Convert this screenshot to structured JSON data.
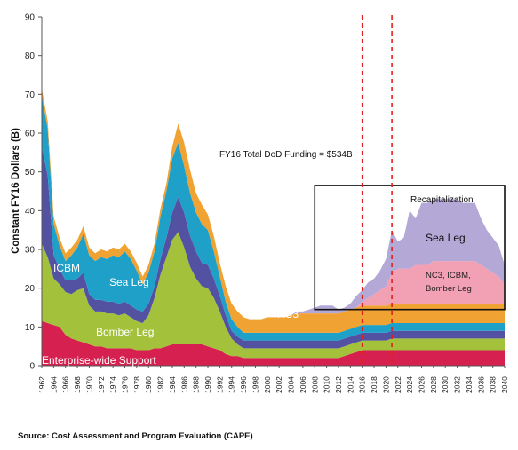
{
  "source": "Source: Cost Assessment and Program Evaluation (CAPE)",
  "chart_data": {
    "type": "area",
    "stacked": true,
    "ylabel": "Constant FY16 Dollars (B)",
    "xlabel": "",
    "ylim": [
      0,
      90
    ],
    "yticks": [
      0,
      10,
      20,
      30,
      40,
      50,
      60,
      70,
      80,
      90
    ],
    "xlim": [
      1962,
      2040
    ],
    "xticks": [
      1962,
      1964,
      1966,
      1968,
      1970,
      1972,
      1974,
      1976,
      1978,
      1980,
      1982,
      1984,
      1986,
      1988,
      1990,
      1992,
      1994,
      1996,
      1998,
      2000,
      2002,
      2004,
      2006,
      2008,
      2010,
      2012,
      2014,
      2016,
      2018,
      2020,
      2022,
      2024,
      2026,
      2028,
      2030,
      2032,
      2034,
      2036,
      2038,
      2040
    ],
    "grid": false,
    "legend": "none",
    "annotation": "FY16 Total DoD Funding = $534B",
    "vlines": [
      2016,
      2021
    ],
    "box": {
      "x": [
        2008,
        2040
      ],
      "y": [
        14.5,
        46.5
      ],
      "label": "Recapitalization"
    },
    "x": [
      1962,
      1963,
      1964,
      1965,
      1966,
      1967,
      1968,
      1969,
      1970,
      1971,
      1972,
      1973,
      1974,
      1975,
      1976,
      1977,
      1978,
      1979,
      1980,
      1981,
      1982,
      1983,
      1984,
      1985,
      1986,
      1987,
      1988,
      1989,
      1990,
      1991,
      1992,
      1993,
      1994,
      1995,
      1996,
      1997,
      1998,
      1999,
      2000,
      2001,
      2002,
      2003,
      2004,
      2005,
      2006,
      2007,
      2008,
      2009,
      2010,
      2011,
      2012,
      2013,
      2014,
      2015,
      2016,
      2017,
      2018,
      2019,
      2020,
      2021,
      2022,
      2023,
      2024,
      2025,
      2026,
      2027,
      2028,
      2029,
      2030,
      2031,
      2032,
      2033,
      2034,
      2035,
      2036,
      2037,
      2038,
      2039,
      2040
    ],
    "series": [
      {
        "name": "Enterprise-wide Support",
        "color": "#d62050",
        "values": [
          11.5,
          11,
          10.5,
          10,
          8,
          7,
          6.5,
          6,
          5.5,
          5,
          5,
          4.5,
          4.5,
          4.5,
          4.5,
          4.5,
          4,
          4,
          4,
          4.5,
          4.5,
          5,
          5.5,
          5.5,
          5.5,
          5.5,
          5.5,
          5.5,
          5,
          4.5,
          4,
          3,
          2.5,
          2.5,
          2,
          2,
          2,
          2,
          2,
          2,
          2,
          2,
          2,
          2,
          2,
          2,
          2,
          2,
          2,
          2,
          2,
          2.5,
          3,
          3.5,
          4,
          4,
          4,
          4,
          4,
          4,
          4,
          4,
          4,
          4,
          4,
          4,
          4,
          4,
          4,
          4,
          4,
          4,
          4,
          4,
          4,
          4,
          4,
          4,
          4
        ]
      },
      {
        "name": "Bomber Leg",
        "color": "#a3c13a",
        "values": [
          20,
          17,
          12,
          11,
          11,
          11.5,
          13,
          14,
          10,
          9,
          9,
          9,
          9,
          8.5,
          9,
          8,
          7.5,
          7,
          9,
          13,
          19,
          23,
          27,
          29,
          25,
          20,
          17,
          15,
          15,
          13,
          10,
          7,
          4.5,
          3,
          2.5,
          2.5,
          2.5,
          2.5,
          2.5,
          2.5,
          2.5,
          2.5,
          2.5,
          2.5,
          2.5,
          2.5,
          2.5,
          2.5,
          2.5,
          2.5,
          2.5,
          2.5,
          2.5,
          2.5,
          2.5,
          2.5,
          2.5,
          2.5,
          2.5,
          3,
          3,
          3,
          3,
          3,
          3,
          3,
          3,
          3,
          3,
          3,
          3,
          3,
          3,
          3,
          3,
          3,
          3,
          3,
          3
        ]
      },
      {
        "name": "ICBM",
        "color": "#5352a2",
        "values": [
          25,
          21,
          6,
          4,
          3,
          3.5,
          3,
          4,
          3,
          3,
          3,
          3,
          3,
          3,
          3,
          3,
          3,
          3,
          3,
          3,
          4,
          5,
          7,
          9,
          9,
          8,
          7,
          6,
          6,
          5,
          4,
          3,
          2,
          2,
          2,
          2,
          2,
          2,
          2,
          2,
          2,
          2,
          2,
          2,
          2,
          2,
          2,
          2,
          2,
          2,
          2,
          2,
          2,
          2,
          2,
          2,
          2,
          2,
          2,
          2,
          2,
          2,
          2,
          2,
          2,
          2,
          2,
          2,
          2,
          2,
          2,
          2,
          2,
          2,
          2,
          2,
          2,
          2,
          2
        ]
      },
      {
        "name": "Sea Leg",
        "color": "#1fa0c8",
        "values": [
          13,
          12,
          8,
          6,
          5,
          6.5,
          8,
          10,
          10,
          10,
          11,
          11,
          12,
          12,
          13,
          12,
          10,
          7,
          8,
          9,
          11,
          12,
          14,
          14,
          12,
          11,
          10,
          10,
          9,
          7,
          5,
          3.5,
          3,
          2.5,
          2,
          2,
          2,
          2,
          2,
          2,
          2,
          2,
          2,
          2,
          2,
          2,
          2,
          2,
          2,
          2,
          2,
          2,
          2,
          2,
          2,
          2,
          2,
          2,
          2,
          2,
          2,
          2,
          2,
          2,
          2,
          2,
          2,
          2,
          2,
          2,
          2,
          2,
          2,
          2,
          2,
          2,
          2,
          2,
          2
        ]
      },
      {
        "name": "NC3",
        "color": "#f0a232",
        "values": [
          2,
          2,
          2,
          2,
          2,
          2,
          2,
          2,
          2,
          2,
          2,
          2,
          2,
          2,
          2,
          2,
          2,
          2,
          2,
          2,
          2,
          2,
          3,
          5,
          6,
          6,
          5,
          5,
          4,
          4,
          3.5,
          4,
          4,
          4,
          4,
          3.5,
          3.5,
          3.5,
          4,
          4,
          4,
          4,
          4.5,
          5,
          5,
          5,
          5,
          5,
          5,
          5,
          5,
          5,
          5,
          5,
          5,
          5,
          5,
          5,
          5,
          5,
          5,
          5,
          5,
          5,
          5,
          5,
          5,
          5,
          5,
          5,
          5,
          5,
          5,
          5,
          5,
          5,
          5,
          5,
          5
        ]
      },
      {
        "name": "NC3, ICBM, Bomber Leg",
        "color": "#f2a0b4",
        "values": [
          0,
          0,
          0,
          0,
          0,
          0,
          0,
          0,
          0,
          0,
          0,
          0,
          0,
          0,
          0,
          0,
          0,
          0,
          0,
          0,
          0,
          0,
          0,
          0,
          0,
          0,
          0,
          0,
          0,
          0,
          0,
          0,
          0,
          0,
          0,
          0,
          0,
          0,
          0,
          0,
          0,
          0,
          0,
          0,
          0,
          0,
          0,
          0,
          0,
          0,
          0,
          0,
          0,
          0,
          1,
          2,
          3,
          4,
          5,
          8,
          9,
          9,
          9,
          10,
          10,
          10,
          11,
          11,
          11,
          11,
          11,
          11,
          11,
          11,
          10,
          9,
          8,
          7,
          5
        ]
      },
      {
        "name": "Sea Leg",
        "color": "#b3a8d6",
        "values": [
          0,
          0,
          0,
          0,
          0,
          0,
          0,
          0,
          0,
          0,
          0,
          0,
          0,
          0,
          0,
          0,
          0,
          0,
          0,
          0,
          0,
          0,
          0,
          0,
          0,
          0,
          0,
          0,
          0,
          0,
          0,
          0,
          0,
          0,
          0,
          0,
          0,
          0,
          0,
          0,
          0,
          0,
          0,
          0.5,
          0.5,
          1,
          1.5,
          2,
          2,
          2,
          1,
          1,
          1.5,
          3,
          3,
          4,
          4,
          5,
          7,
          11,
          7,
          8,
          15,
          12,
          16,
          16,
          16,
          16,
          16,
          16,
          16,
          15,
          15,
          15,
          12,
          10,
          9,
          8,
          5
        ]
      }
    ],
    "area_labels": [
      "ICBM",
      "Sea Leg",
      "Bomber Leg",
      "Enterprise-wide Support",
      "NC3",
      "Sea Leg",
      "NC3, ICBM,",
      "Bomber Leg"
    ]
  }
}
